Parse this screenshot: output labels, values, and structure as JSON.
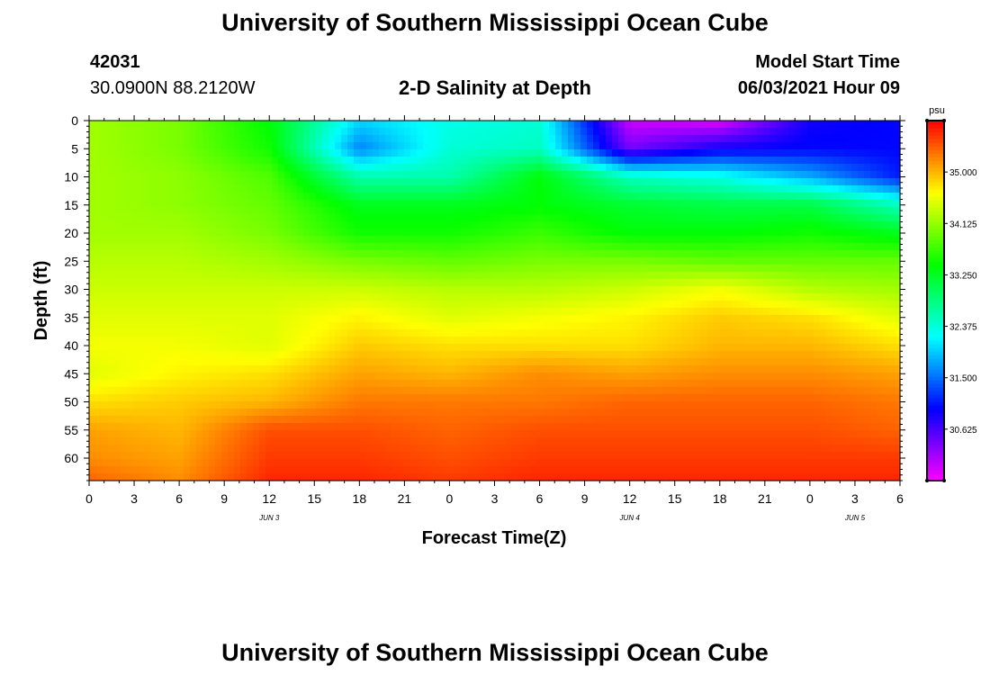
{
  "page": {
    "title_top": "University of Southern Mississippi Ocean Cube",
    "title_bottom": "University of Southern Mississippi Ocean Cube",
    "station_id": "42031",
    "station_coords": "30.0900N  88.2120W",
    "model_start_label": "Model Start Time",
    "model_start_value": "06/03/2021 Hour 09"
  },
  "chart_data": {
    "type": "heatmap",
    "title": "2-D Salinity at Depth",
    "xlabel": "Forecast Time(Z)",
    "ylabel": "Depth (ft)",
    "x_tick_labels": [
      "0",
      "3",
      "6",
      "9",
      "12",
      "15",
      "18",
      "21",
      "0",
      "3",
      "6",
      "9",
      "12",
      "15",
      "18",
      "21",
      "0",
      "3",
      "6"
    ],
    "x_range_hours": [
      0,
      54
    ],
    "date_labels": [
      {
        "text": "JUN 3",
        "hour": 12
      },
      {
        "text": "JUN 4",
        "hour": 36
      },
      {
        "text": "JUN 5",
        "hour": 51
      }
    ],
    "y_ticks": [
      0,
      5,
      10,
      15,
      20,
      25,
      30,
      35,
      40,
      45,
      50,
      55,
      60
    ],
    "y_range": [
      0,
      64
    ],
    "y_inverted": true,
    "colorbar": {
      "unit": "psu",
      "ticks": [
        "35.000",
        "34.125",
        "33.250",
        "32.375",
        "31.500",
        "30.625"
      ],
      "tick_values": [
        35.0,
        34.125,
        33.25,
        32.375,
        31.5,
        30.625
      ],
      "range": [
        29.75,
        35.875
      ],
      "colors": [
        "#ff00ff",
        "#7f00ff",
        "#0000ff",
        "#0080ff",
        "#00ffff",
        "#00ff80",
        "#00ff00",
        "#80ff00",
        "#ffff00",
        "#ff8000",
        "#ff0000"
      ]
    },
    "salinity_grid": {
      "times": [
        0,
        6,
        12,
        18,
        24,
        30,
        36,
        42,
        48,
        54
      ],
      "depths": [
        0,
        5,
        10,
        15,
        20,
        25,
        30,
        35,
        40,
        45,
        50,
        55,
        60,
        64
      ],
      "values": [
        [
          34.2,
          34.0,
          33.4,
          32.0,
          32.3,
          32.4,
          30.0,
          29.9,
          30.9,
          31.0
        ],
        [
          34.2,
          34.0,
          33.5,
          31.6,
          32.4,
          32.5,
          30.4,
          30.9,
          31.0,
          31.0
        ],
        [
          34.2,
          34.1,
          33.8,
          32.6,
          32.6,
          33.4,
          32.5,
          32.3,
          31.8,
          31.1
        ],
        [
          34.2,
          34.1,
          33.9,
          33.3,
          33.3,
          33.4,
          33.2,
          33.1,
          33.1,
          32.5
        ],
        [
          34.2,
          34.2,
          34.0,
          33.5,
          33.5,
          33.7,
          33.4,
          33.4,
          33.5,
          33.3
        ],
        [
          34.3,
          34.3,
          34.2,
          34.0,
          33.9,
          34.0,
          34.0,
          33.9,
          33.9,
          33.9
        ],
        [
          34.4,
          34.4,
          34.4,
          34.4,
          34.3,
          34.3,
          34.4,
          34.6,
          34.3,
          34.2
        ],
        [
          34.5,
          34.5,
          34.5,
          34.7,
          34.5,
          34.6,
          34.7,
          34.9,
          34.8,
          34.5
        ],
        [
          34.6,
          34.6,
          34.5,
          34.9,
          34.8,
          34.8,
          34.8,
          35.0,
          35.0,
          34.8
        ],
        [
          34.5,
          34.7,
          34.8,
          35.1,
          35.0,
          35.2,
          35.1,
          35.2,
          35.2,
          35.1
        ],
        [
          34.8,
          34.9,
          35.0,
          35.3,
          35.3,
          35.3,
          35.4,
          35.4,
          35.4,
          35.3
        ],
        [
          35.1,
          35.0,
          35.5,
          35.5,
          35.4,
          35.5,
          35.5,
          35.5,
          35.5,
          35.4
        ],
        [
          35.2,
          35.1,
          35.6,
          35.6,
          35.5,
          35.6,
          35.6,
          35.6,
          35.6,
          35.6
        ],
        [
          35.4,
          35.2,
          35.7,
          35.7,
          35.6,
          35.7,
          35.7,
          35.7,
          35.7,
          35.7
        ]
      ]
    }
  }
}
